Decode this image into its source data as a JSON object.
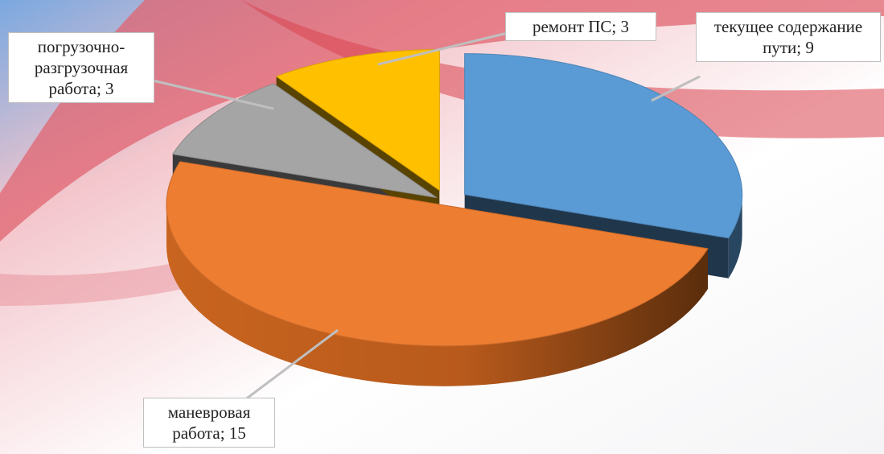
{
  "chart_data": {
    "type": "pie3d",
    "categories": [
      "текущее содержание пути",
      "маневровая работа",
      "погрузочно-разгрузочная работа",
      "ремонт ПС"
    ],
    "values": [
      9,
      15,
      3,
      3
    ],
    "colors": [
      "#5b9bd5",
      "#ed7d31",
      "#a5a5a5",
      "#ffc000"
    ],
    "label_separator": "; "
  }
}
